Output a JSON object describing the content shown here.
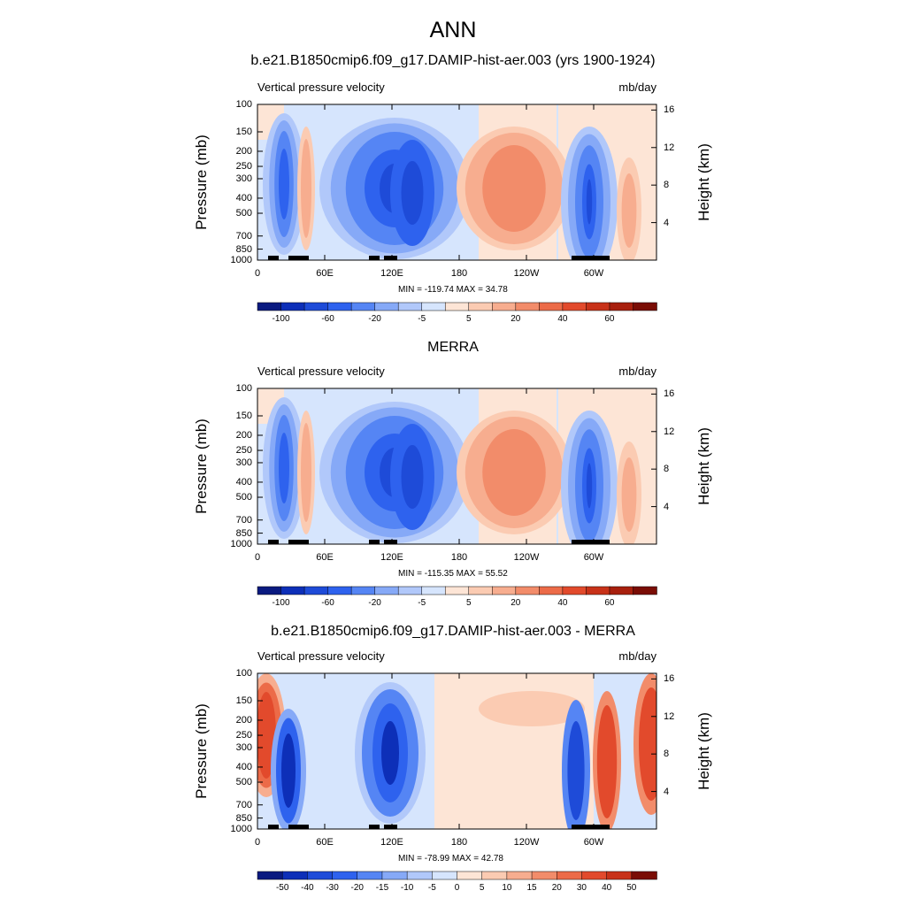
{
  "figure_title": "ANN",
  "chart_data": [
    {
      "type": "heatmap",
      "title": "b.e21.B1850cmip6.f09_g17.DAMIP-hist-aer.003 (yrs 1900-1924)",
      "left_label": "Vertical pressure velocity",
      "units": "mb/day",
      "ylabel": "Pressure (mb)",
      "ylabel_right": "Height (km)",
      "yticks": [
        "100",
        "150",
        "200",
        "250",
        "300",
        "400",
        "500",
        "700",
        "850",
        "1000"
      ],
      "yticks_right": [
        "16",
        "12",
        "8",
        "4"
      ],
      "xticks": [
        "0",
        "60E",
        "120E",
        "180",
        "120W",
        "60W"
      ],
      "stats": "MIN = -119.74  MAX =  34.78",
      "colorbar_levels": [
        "-100",
        "-60",
        "-20",
        "-5",
        "5",
        "20",
        "40",
        "60"
      ],
      "colorbar_colors": [
        "#0a1a80",
        "#0d2fb8",
        "#1e4bd8",
        "#2e62ee",
        "#5585f4",
        "#86a9f7",
        "#b1c8fa",
        "#d6e5fd",
        "#fde5d6",
        "#fbcbb2",
        "#f7ad8f",
        "#f28c6a",
        "#ec6b48",
        "#e24a2c",
        "#c83219",
        "#a8200e",
        "#7a0d05"
      ]
    },
    {
      "type": "heatmap",
      "title": "MERRA",
      "left_label": "Vertical pressure velocity",
      "units": "mb/day",
      "ylabel": "Pressure (mb)",
      "ylabel_right": "Height (km)",
      "yticks": [
        "100",
        "150",
        "200",
        "250",
        "300",
        "400",
        "500",
        "700",
        "850",
        "1000"
      ],
      "yticks_right": [
        "16",
        "12",
        "8",
        "4"
      ],
      "xticks": [
        "0",
        "60E",
        "120E",
        "180",
        "120W",
        "60W"
      ],
      "stats": "MIN = -115.35  MAX =  55.52",
      "colorbar_levels": [
        "-100",
        "-60",
        "-20",
        "-5",
        "5",
        "20",
        "40",
        "60"
      ],
      "colorbar_colors": [
        "#0a1a80",
        "#0d2fb8",
        "#1e4bd8",
        "#2e62ee",
        "#5585f4",
        "#86a9f7",
        "#b1c8fa",
        "#d6e5fd",
        "#fde5d6",
        "#fbcbb2",
        "#f7ad8f",
        "#f28c6a",
        "#ec6b48",
        "#e24a2c",
        "#c83219",
        "#a8200e",
        "#7a0d05"
      ]
    },
    {
      "type": "heatmap",
      "title": "b.e21.B1850cmip6.f09_g17.DAMIP-hist-aer.003 - MERRA",
      "left_label": "Vertical pressure velocity",
      "units": "mb/day",
      "ylabel": "Pressure (mb)",
      "ylabel_right": "Height (km)",
      "yticks": [
        "100",
        "150",
        "200",
        "250",
        "300",
        "400",
        "500",
        "700",
        "850",
        "1000"
      ],
      "yticks_right": [
        "16",
        "12",
        "8",
        "4"
      ],
      "xticks": [
        "0",
        "60E",
        "120E",
        "180",
        "120W",
        "60W"
      ],
      "stats": "MIN = -78.99  MAX =  42.78",
      "colorbar_levels": [
        "-50",
        "-40",
        "-30",
        "-20",
        "-15",
        "-10",
        "-5",
        "0",
        "5",
        "10",
        "15",
        "20",
        "30",
        "40",
        "50"
      ],
      "colorbar_colors": [
        "#0a1a80",
        "#0d2fb8",
        "#1e4bd8",
        "#2e62ee",
        "#5585f4",
        "#86a9f7",
        "#b1c8fa",
        "#d6e5fd",
        "#fde5d6",
        "#fbcbb2",
        "#f7ad8f",
        "#f28c6a",
        "#ec6b48",
        "#e24a2c",
        "#c83219",
        "#7a0d05"
      ]
    }
  ]
}
